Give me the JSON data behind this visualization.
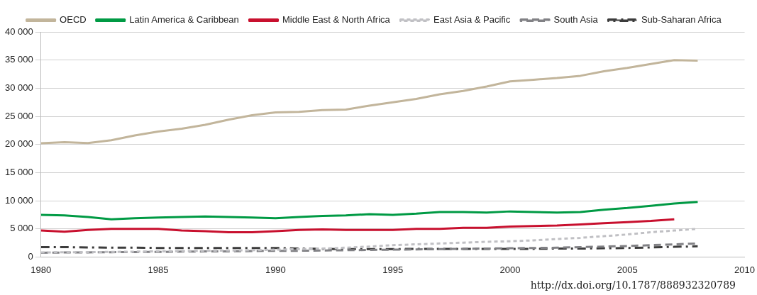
{
  "chart_data": {
    "type": "line",
    "x": [
      1980,
      1981,
      1982,
      1983,
      1984,
      1985,
      1986,
      1987,
      1988,
      1989,
      1990,
      1991,
      1992,
      1993,
      1994,
      1995,
      1996,
      1997,
      1998,
      1999,
      2000,
      2001,
      2002,
      2003,
      2004,
      2005,
      2006,
      2007,
      2008
    ],
    "series": [
      {
        "name": "OECD",
        "color": "#c2b59b",
        "line_style": "solid",
        "values": [
          20200,
          20400,
          20250,
          20750,
          21600,
          22300,
          22800,
          23500,
          24400,
          25200,
          25700,
          25800,
          26100,
          26200,
          26900,
          27500,
          28100,
          28900,
          29500,
          30300,
          31200,
          31500,
          31800,
          32200,
          33000,
          33600,
          34300,
          35000,
          34900
        ]
      },
      {
        "name": "Latin America & Caribbean",
        "color": "#009a44",
        "line_style": "solid",
        "values": [
          7500,
          7400,
          7100,
          6700,
          6900,
          7000,
          7100,
          7200,
          7100,
          7000,
          6900,
          7100,
          7300,
          7400,
          7600,
          7500,
          7700,
          8000,
          8000,
          7900,
          8100,
          8000,
          7900,
          8000,
          8400,
          8700,
          9100,
          9500,
          9800
        ]
      },
      {
        "name": "Middle East & North Africa",
        "color": "#c8102e",
        "line_style": "solid",
        "values": [
          4700,
          4500,
          4800,
          5000,
          5000,
          5000,
          4700,
          4600,
          4400,
          4400,
          4600,
          4800,
          4900,
          4800,
          4800,
          4800,
          5000,
          5000,
          5200,
          5200,
          5400,
          5500,
          5600,
          5800,
          6000,
          6200,
          6400,
          6700,
          null
        ]
      },
      {
        "name": "East Asia & Pacific",
        "color": "#c0c0c4",
        "line_style": "dotted",
        "values": [
          800,
          850,
          850,
          900,
          950,
          1000,
          1050,
          1100,
          1150,
          1200,
          1300,
          1400,
          1500,
          1650,
          1850,
          2100,
          2250,
          2400,
          2550,
          2700,
          2800,
          2950,
          3200,
          3400,
          3700,
          4000,
          4400,
          4700,
          5000
        ]
      },
      {
        "name": "South Asia",
        "color": "#818185",
        "line_style": "dashed",
        "values": [
          750,
          800,
          820,
          850,
          880,
          900,
          950,
          980,
          1000,
          1050,
          1100,
          1100,
          1150,
          1200,
          1250,
          1300,
          1350,
          1400,
          1450,
          1500,
          1550,
          1600,
          1650,
          1750,
          1850,
          1950,
          2100,
          2250,
          2400
        ]
      },
      {
        "name": "Sub-Saharan Africa",
        "color": "#3c3c3c",
        "line_style": "dashdot",
        "values": [
          1750,
          1750,
          1700,
          1650,
          1650,
          1600,
          1600,
          1600,
          1600,
          1600,
          1600,
          1500,
          1450,
          1400,
          1400,
          1400,
          1450,
          1450,
          1450,
          1450,
          1450,
          1450,
          1500,
          1500,
          1550,
          1600,
          1700,
          1800,
          1900
        ]
      }
    ],
    "xlim": [
      1980,
      2010
    ],
    "xticks": [
      1980,
      1985,
      1990,
      1995,
      2000,
      2005,
      2010
    ],
    "ylim": [
      0,
      40000
    ],
    "yticks": [
      {
        "value": 0,
        "label": "0"
      },
      {
        "value": 5000,
        "label": "5 000"
      },
      {
        "value": 10000,
        "label": "10 000"
      },
      {
        "value": 15000,
        "label": "15 000"
      },
      {
        "value": 20000,
        "label": "20 000"
      },
      {
        "value": 25000,
        "label": "25 000"
      },
      {
        "value": 30000,
        "label": "30 000"
      },
      {
        "value": 35000,
        "label": "35 000"
      },
      {
        "value": 40000,
        "label": "40 000"
      }
    ],
    "grid": "y",
    "legend": "top",
    "marker": "none",
    "annotations": [
      "http://dx.doi.org/10.1787/888932320789"
    ]
  }
}
